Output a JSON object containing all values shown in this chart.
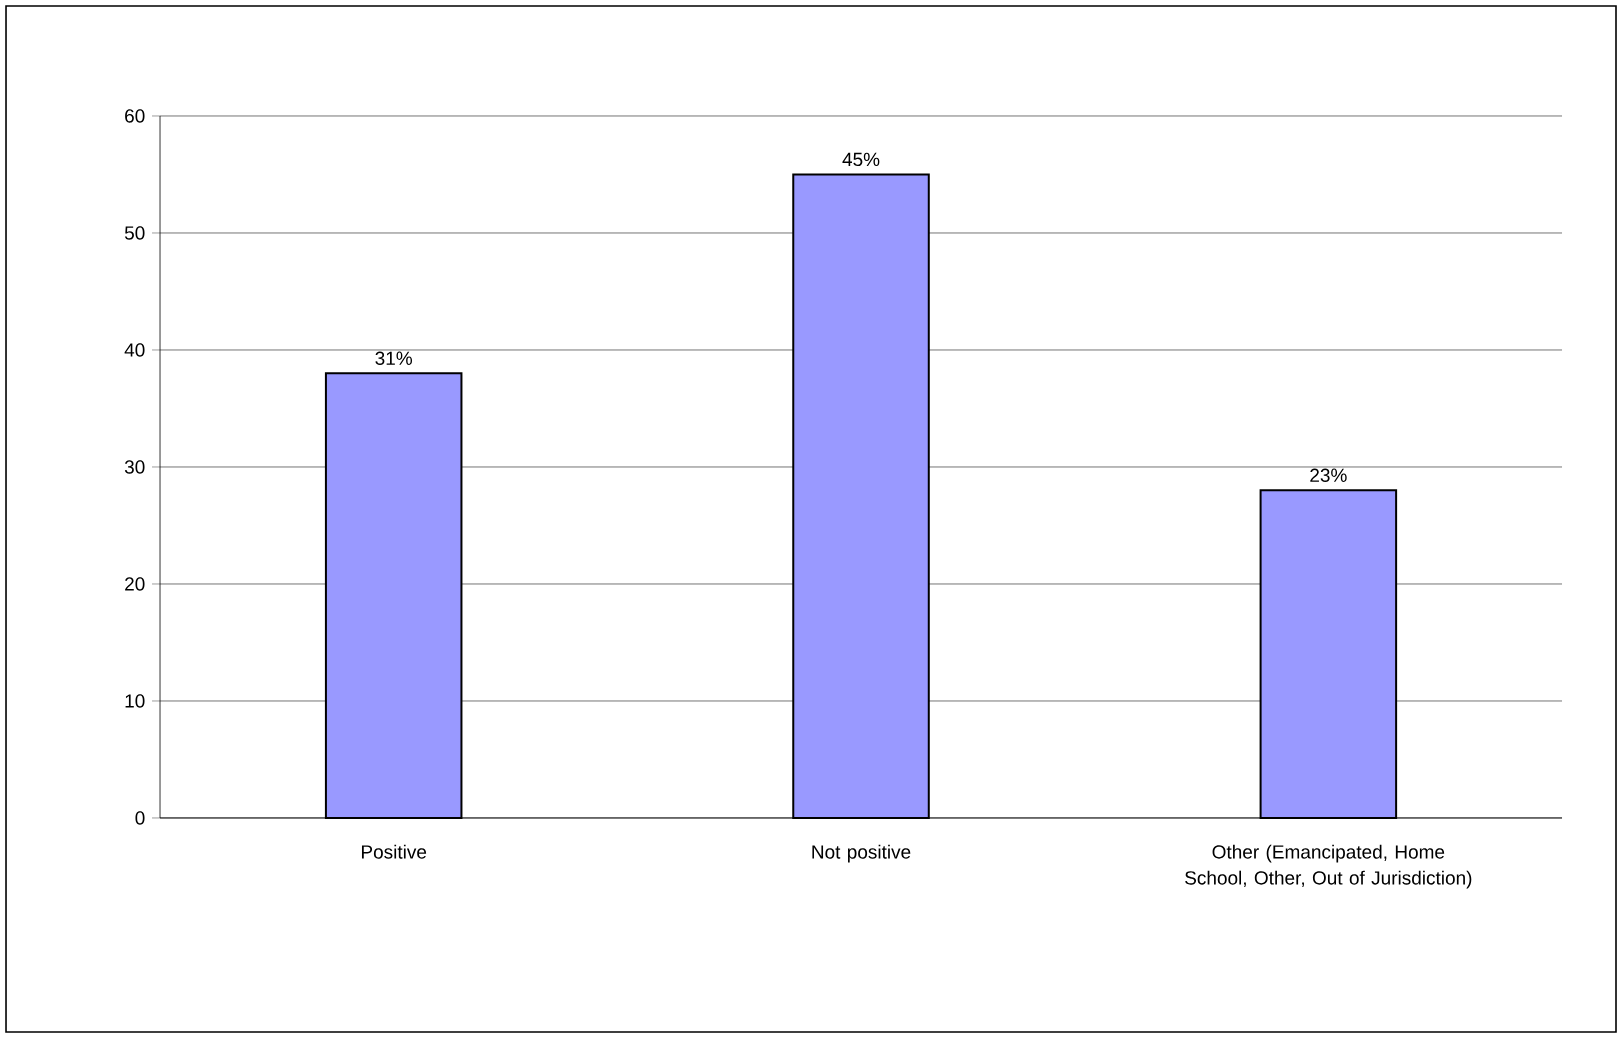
{
  "chart_data": {
    "type": "bar",
    "categories": [
      "Positive",
      "Not positive",
      "Other (Emancipated, Home School, Other, Out of Jurisdiction)"
    ],
    "values": [
      38,
      55,
      28
    ],
    "annotations": [
      {
        "text": "31%",
        "x": "Positive",
        "y": 38
      },
      {
        "text": "45%",
        "x": "Not positive",
        "y": 55
      },
      {
        "text": "23%",
        "x": "Other (Emancipated, Home School, Other, Out of Jurisdiction)",
        "y": 28
      }
    ],
    "color": "#9999ff",
    "ylim": [
      0,
      60
    ],
    "yticks": [
      0,
      10,
      20,
      30,
      40,
      50,
      60
    ],
    "grid": "y"
  }
}
